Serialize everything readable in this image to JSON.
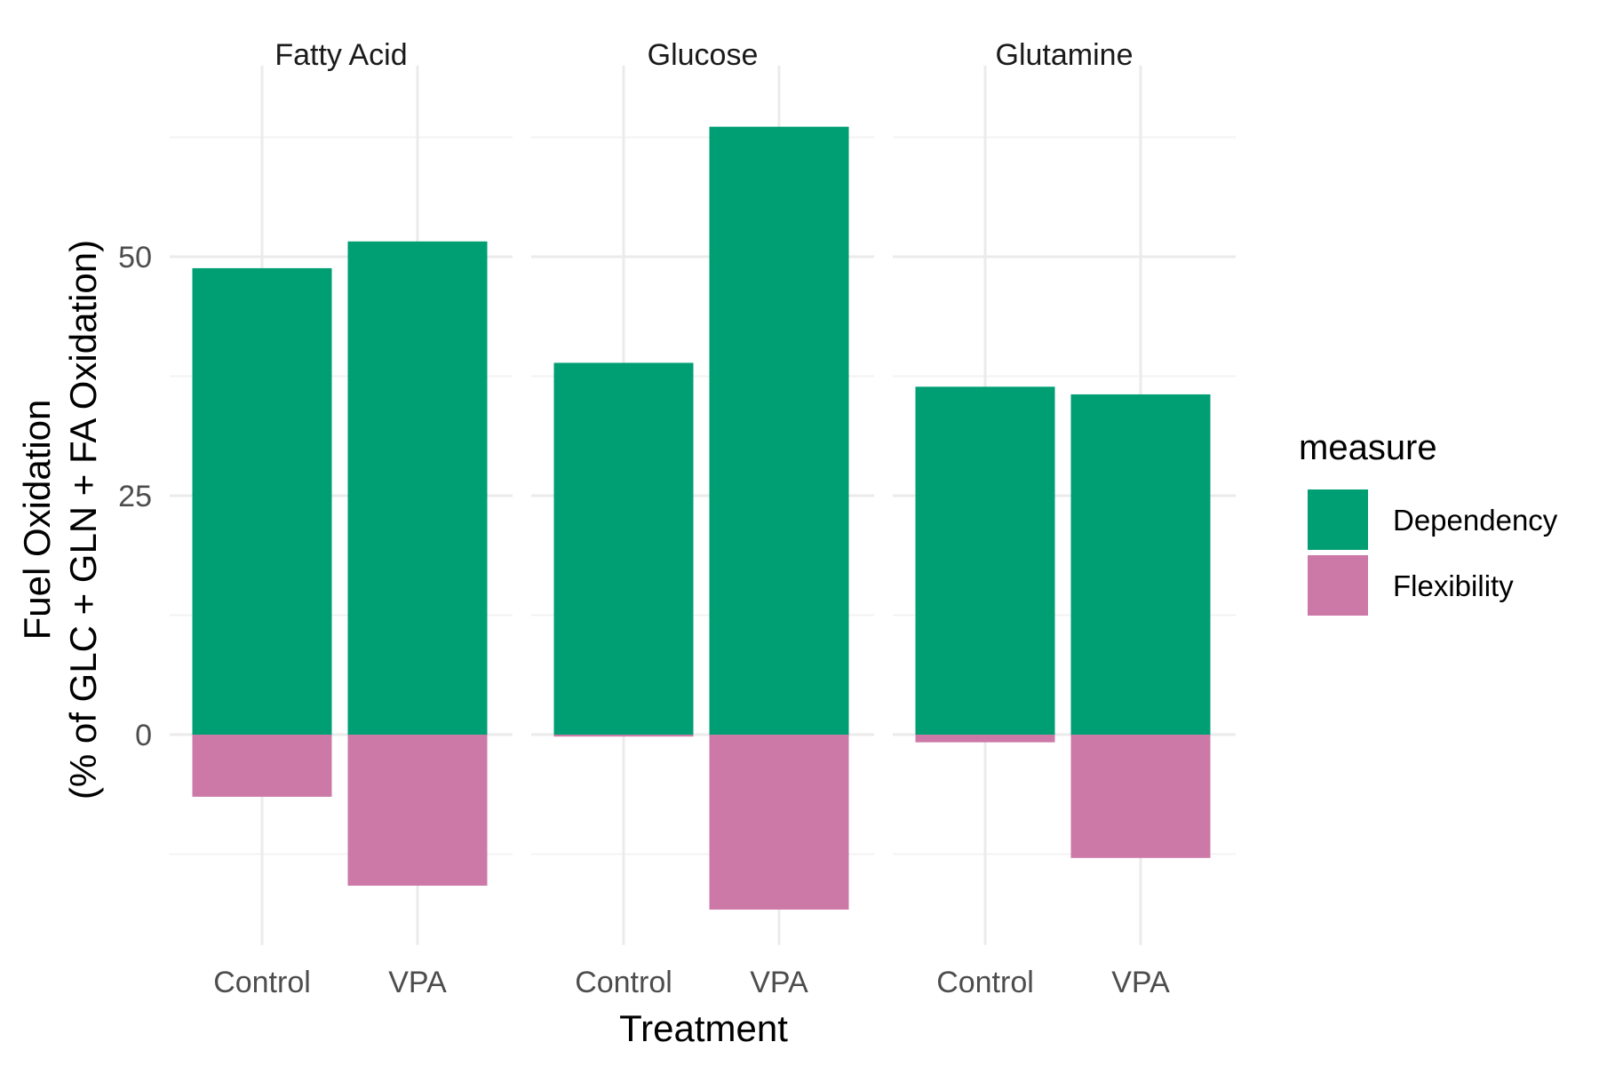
{
  "chart_data": {
    "type": "bar",
    "stacked": true,
    "xlabel": "Treatment",
    "ylabel_line1": "Fuel Oxidation",
    "ylabel_line2": "(% of GLC + GLN + FA Oxidation)",
    "y_ticks": [
      0,
      25,
      50
    ],
    "ylim": [
      -22,
      70
    ],
    "grid": true,
    "categories": [
      "Control",
      "VPA"
    ],
    "facets": [
      {
        "label": "Fatty Acid",
        "series": [
          {
            "name": "Dependency",
            "values": [
              48.8,
              51.6
            ]
          },
          {
            "name": "Flexibility",
            "values": [
              -6.5,
              -15.8
            ]
          }
        ]
      },
      {
        "label": "Glucose",
        "series": [
          {
            "name": "Dependency",
            "values": [
              38.9,
              63.6
            ]
          },
          {
            "name": "Flexibility",
            "values": [
              -0.2,
              -18.3
            ]
          }
        ]
      },
      {
        "label": "Glutamine",
        "series": [
          {
            "name": "Dependency",
            "values": [
              36.4,
              35.6
            ]
          },
          {
            "name": "Flexibility",
            "values": [
              -0.8,
              -12.9
            ]
          }
        ]
      }
    ],
    "legend": {
      "title": "measure",
      "position": "right",
      "items": [
        {
          "name": "Dependency",
          "color": "#009E73"
        },
        {
          "name": "Flexibility",
          "color": "#CC79A7"
        }
      ]
    }
  }
}
